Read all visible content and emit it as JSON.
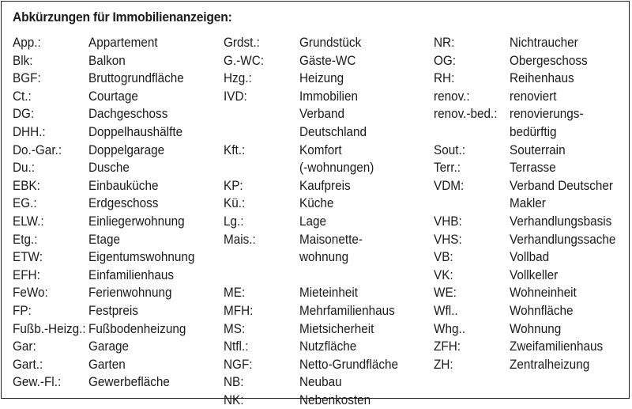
{
  "title": "Abkürzungen für Immobilienanzeigen:",
  "columns": [
    {
      "rows": [
        {
          "abbr": "App.:",
          "full": [
            "Appartement"
          ]
        },
        {
          "abbr": "Blk:",
          "full": [
            "Balkon"
          ]
        },
        {
          "abbr": "BGF:",
          "full": [
            "Bruttogrundfläche"
          ]
        },
        {
          "abbr": "Ct.:",
          "full": [
            "Courtage"
          ]
        },
        {
          "abbr": "DG:",
          "full": [
            "Dachgeschoss"
          ]
        },
        {
          "abbr": "DHH.:",
          "full": [
            "Doppelhaushälfte"
          ]
        },
        {
          "abbr": "Do.-Gar.:",
          "full": [
            "Doppelgarage"
          ]
        },
        {
          "abbr": "Du.:",
          "full": [
            "Dusche"
          ]
        },
        {
          "abbr": "EBK:",
          "full": [
            "Einbauküche"
          ]
        },
        {
          "abbr": "EG.:",
          "full": [
            "Erdgeschoss"
          ]
        },
        {
          "abbr": "ELW.:",
          "full": [
            "Einliegerwohnung"
          ]
        },
        {
          "abbr": "Etg.:",
          "full": [
            "Etage"
          ]
        },
        {
          "abbr": "ETW:",
          "full": [
            "Eigentumswohnung"
          ]
        },
        {
          "abbr": "EFH:",
          "full": [
            "Einfamilienhaus"
          ]
        },
        {
          "abbr": "FeWo:",
          "full": [
            "Ferienwohnung"
          ]
        },
        {
          "abbr": "FP:",
          "full": [
            "Festpreis"
          ]
        },
        {
          "abbr": "Fußb.-Heizg.:",
          "full": [
            "Fußbodenheizung"
          ]
        },
        {
          "abbr": "Gar:",
          "full": [
            "Garage"
          ]
        },
        {
          "abbr": "Gart.:",
          "full": [
            "Garten"
          ]
        },
        {
          "abbr": "Gew.-Fl.:",
          "full": [
            "Gewerbefläche"
          ]
        }
      ]
    },
    {
      "rows": [
        {
          "abbr": "Grdst.:",
          "full": [
            "Grundstück"
          ]
        },
        {
          "abbr": "G.-WC:",
          "full": [
            "Gäste-WC"
          ]
        },
        {
          "abbr": "Hzg.:",
          "full": [
            "Heizung"
          ]
        },
        {
          "abbr": "IVD:",
          "full": [
            "Immobilien",
            "Verband",
            "Deutschland"
          ]
        },
        {
          "abbr": "Kft.:",
          "full": [
            "Komfort",
            "(-wohnungen)"
          ]
        },
        {
          "abbr": "KP:",
          "full": [
            "Kaufpreis"
          ]
        },
        {
          "abbr": "Kü.:",
          "full": [
            "Küche"
          ]
        },
        {
          "abbr": "Lg.:",
          "full": [
            "Lage"
          ]
        },
        {
          "abbr": "Mais.:",
          "full": [
            "Maisonette-",
            "wohnung"
          ]
        },
        {
          "abbr": "",
          "full": [
            ""
          ]
        },
        {
          "abbr": "ME:",
          "full": [
            "Mieteinheit"
          ]
        },
        {
          "abbr": "MFH:",
          "full": [
            "Mehrfamilienhaus"
          ]
        },
        {
          "abbr": "MS:",
          "full": [
            "Mietsicherheit"
          ]
        },
        {
          "abbr": "Ntfl.:",
          "full": [
            "Nutzfläche"
          ]
        },
        {
          "abbr": "NGF:",
          "full": [
            "Netto-Grundfläche"
          ]
        },
        {
          "abbr": "NB:",
          "full": [
            "Neubau"
          ]
        },
        {
          "abbr": "NK:",
          "full": [
            "Nebenkosten"
          ]
        }
      ]
    },
    {
      "rows": [
        {
          "abbr": "NR:",
          "full": [
            "Nichtraucher"
          ]
        },
        {
          "abbr": "OG:",
          "full": [
            "Obergeschoss"
          ]
        },
        {
          "abbr": "RH:",
          "full": [
            "Reihenhaus"
          ]
        },
        {
          "abbr": "renov.:",
          "full": [
            "renoviert"
          ]
        },
        {
          "abbr": "renov.-bed.:",
          "full": [
            "renovierungs-",
            "bedürftig"
          ]
        },
        {
          "abbr": "Sout.:",
          "full": [
            "Souterrain"
          ]
        },
        {
          "abbr": "Terr.:",
          "full": [
            "Terrasse"
          ]
        },
        {
          "abbr": "VDM:",
          "full": [
            "Verband Deutscher",
            "Makler"
          ]
        },
        {
          "abbr": "VHB:",
          "full": [
            "Verhandlungsbasis"
          ]
        },
        {
          "abbr": "VHS:",
          "full": [
            "Verhandlungssache"
          ]
        },
        {
          "abbr": "VB:",
          "full": [
            "Vollbad"
          ]
        },
        {
          "abbr": "VK:",
          "full": [
            "Vollkeller"
          ]
        },
        {
          "abbr": "WE:",
          "full": [
            "Wohneinheit"
          ]
        },
        {
          "abbr": "Wfl..",
          "full": [
            "Wohnfläche"
          ]
        },
        {
          "abbr": "Whg..",
          "full": [
            "Wohnung"
          ]
        },
        {
          "abbr": "ZFH:",
          "full": [
            "Zweifamilienhaus"
          ]
        },
        {
          "abbr": "ZH:",
          "full": [
            "Zentralheizung"
          ]
        }
      ]
    }
  ]
}
